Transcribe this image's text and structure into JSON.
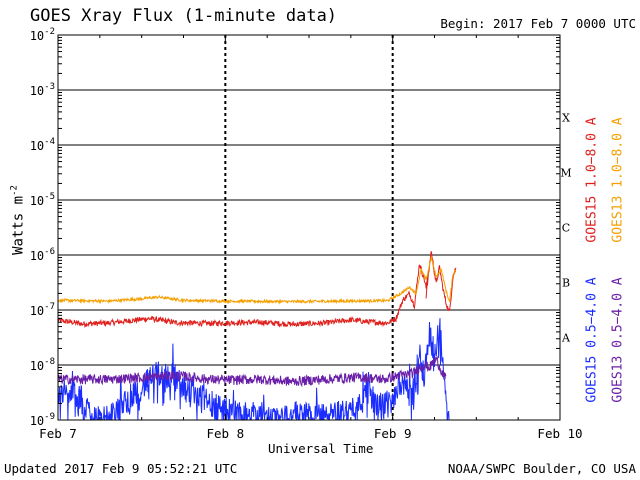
{
  "header": {
    "title": "GOES Xray Flux (1-minute data)",
    "begin_label": "Begin:  2017 Feb 7 0000 UTC"
  },
  "footer": {
    "updated": "Updated 2017 Feb  9 05:52:21 UTC",
    "credit": "NOAA/SWPC Boulder, CO USA"
  },
  "chart_data": {
    "type": "line",
    "title": "GOES Xray Flux (1-minute data)",
    "xlabel": "Universal Time",
    "ylabel": "Watts m",
    "ylabel_superscript": "-2",
    "x_unit": "days since 2017 Feb 7 0000 UTC",
    "xlim": [
      0,
      3
    ],
    "x_ticks": [
      {
        "value": 0,
        "label": "Feb 7"
      },
      {
        "value": 1,
        "label": "Feb 8"
      },
      {
        "value": 2,
        "label": "Feb 9"
      },
      {
        "value": 3,
        "label": "Feb 10"
      }
    ],
    "y_scale": "log",
    "ylim_exponent": [
      -9,
      -2
    ],
    "y_ticks": [
      {
        "exponent": -2,
        "label": "10",
        "sup": "-2"
      },
      {
        "exponent": -3,
        "label": "10",
        "sup": "-3"
      },
      {
        "exponent": -4,
        "label": "10",
        "sup": "-4"
      },
      {
        "exponent": -5,
        "label": "10",
        "sup": "-5"
      },
      {
        "exponent": -6,
        "label": "10",
        "sup": "-6"
      },
      {
        "exponent": -7,
        "label": "10",
        "sup": "-7"
      },
      {
        "exponent": -8,
        "label": "10",
        "sup": "-8"
      },
      {
        "exponent": -9,
        "label": "10",
        "sup": "-9"
      }
    ],
    "flare_classes": [
      {
        "label": "X",
        "exponent_mid": -3.5
      },
      {
        "label": "M",
        "exponent_mid": -4.5
      },
      {
        "label": "C",
        "exponent_mid": -5.5
      },
      {
        "label": "B",
        "exponent_mid": -6.5
      },
      {
        "label": "A",
        "exponent_mid": -7.5
      }
    ],
    "day_separators": [
      1,
      2
    ],
    "series": [
      {
        "name": "GOES15 1.0-8.0 A",
        "color": "#e0201c",
        "noise": 0.05,
        "points": [
          [
            0,
            6.5e-08
          ],
          [
            0.15,
            5.6e-08
          ],
          [
            0.3,
            5.8e-08
          ],
          [
            0.55,
            7e-08
          ],
          [
            0.7,
            5.9e-08
          ],
          [
            0.9,
            5.7e-08
          ],
          [
            1.0,
            5.8e-08
          ],
          [
            1.2,
            6e-08
          ],
          [
            1.4,
            5.5e-08
          ],
          [
            1.6,
            5.8e-08
          ],
          [
            1.75,
            6.6e-08
          ],
          [
            1.85,
            6.1e-08
          ],
          [
            1.97,
            5.8e-08
          ],
          [
            2.02,
            7e-08
          ],
          [
            2.06,
            1.5e-07
          ],
          [
            2.1,
            2e-07
          ],
          [
            2.13,
            1.2e-07
          ],
          [
            2.16,
            7e-07
          ],
          [
            2.19,
            3.5e-07
          ],
          [
            2.2,
            2.5e-07
          ],
          [
            2.21,
            4.5e-07
          ],
          [
            2.2,
            1.8e-07
          ],
          [
            2.23,
            1.2e-06
          ],
          [
            2.26,
            3e-07
          ],
          [
            2.28,
            6e-07
          ],
          [
            2.3,
            2.5e-07
          ],
          [
            2.32,
            1.3e-07
          ],
          [
            2.34,
            9e-08
          ],
          [
            2.36,
            4e-07
          ],
          [
            2.38,
            6e-07
          ]
        ]
      },
      {
        "name": "GOES13 1.0-8.0 A",
        "color": "#f5a000",
        "noise": 0.025,
        "points": [
          [
            0,
            1.5e-07
          ],
          [
            0.3,
            1.45e-07
          ],
          [
            0.5,
            1.6e-07
          ],
          [
            0.6,
            1.72e-07
          ],
          [
            0.75,
            1.5e-07
          ],
          [
            1.0,
            1.45e-07
          ],
          [
            1.4,
            1.42e-07
          ],
          [
            1.7,
            1.45e-07
          ],
          [
            1.97,
            1.48e-07
          ],
          [
            2.05,
            2e-07
          ],
          [
            2.1,
            2.6e-07
          ],
          [
            2.14,
            2e-07
          ],
          [
            2.17,
            5.5e-07
          ],
          [
            2.2,
            3.5e-07
          ],
          [
            2.23,
            9e-07
          ],
          [
            2.26,
            4e-07
          ],
          [
            2.29,
            5.5e-07
          ],
          [
            2.32,
            2.2e-07
          ],
          [
            2.34,
            1.4e-07
          ],
          [
            2.36,
            4.5e-07
          ],
          [
            2.38,
            5.5e-07
          ]
        ]
      },
      {
        "name": "GOES15 0.5-4.0 A",
        "color": "#1a2cff",
        "noise": 0.25,
        "points": [
          [
            0,
            3e-09
          ],
          [
            0.1,
            3e-09
          ],
          [
            0.2,
            1.3e-09
          ],
          [
            0.3,
            1e-09
          ],
          [
            0.45,
            3e-09
          ],
          [
            0.6,
            7e-09
          ],
          [
            0.7,
            6e-09
          ],
          [
            0.85,
            2.5e-09
          ],
          [
            1.0,
            1.6e-09
          ],
          [
            1.15,
            1.1e-09
          ],
          [
            1.3,
            1e-09
          ],
          [
            1.45,
            1.3e-09
          ],
          [
            1.6,
            1.1e-09
          ],
          [
            1.75,
            1.5e-09
          ],
          [
            1.85,
            3.5e-09
          ],
          [
            1.92,
            1.6e-09
          ],
          [
            1.98,
            2e-09
          ],
          [
            2.05,
            5e-09
          ],
          [
            2.12,
            3e-09
          ],
          [
            2.16,
            1.5e-08
          ],
          [
            2.19,
            7e-09
          ],
          [
            2.22,
            4e-08
          ],
          [
            2.25,
            1.5e-08
          ],
          [
            2.28,
            5e-08
          ],
          [
            2.3,
            1.2e-08
          ],
          [
            2.32,
            3e-09
          ],
          [
            2.34,
            1e-09
          ]
        ]
      },
      {
        "name": "GOES13 0.5-4.0 A",
        "color": "#6a1fa8",
        "noise": 0.09,
        "points": [
          [
            0,
            5.5e-09
          ],
          [
            0.3,
            5.5e-09
          ],
          [
            0.55,
            6e-09
          ],
          [
            0.7,
            6.5e-09
          ],
          [
            0.9,
            5.5e-09
          ],
          [
            1.0,
            5.3e-09
          ],
          [
            1.2,
            5.5e-09
          ],
          [
            1.4,
            5e-09
          ],
          [
            1.6,
            5.5e-09
          ],
          [
            1.8,
            6e-09
          ],
          [
            1.95,
            5.5e-09
          ],
          [
            2.05,
            6.5e-09
          ],
          [
            2.12,
            7e-09
          ],
          [
            2.18,
            1e-08
          ],
          [
            2.22,
            9e-09
          ],
          [
            2.26,
            1.3e-08
          ],
          [
            2.29,
            8e-09
          ],
          [
            2.31,
            6e-09
          ],
          [
            2.32,
            5.5e-09
          ]
        ]
      }
    ],
    "legend": [
      {
        "label": "GOES15 1.0−8.0 A",
        "color": "#e0201c"
      },
      {
        "label": "GOES13 1.0−8.0 A",
        "color": "#f5a000"
      },
      {
        "label": "GOES15 0.5−4.0 A",
        "color": "#1a2cff"
      },
      {
        "label": "GOES13 0.5−4.0 A",
        "color": "#6a1fa8"
      }
    ]
  }
}
